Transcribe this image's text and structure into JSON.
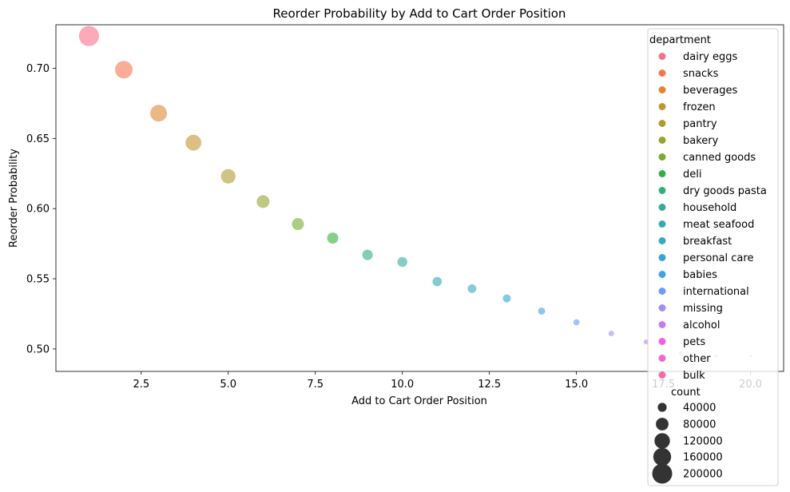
{
  "chart_data": {
    "type": "scatter",
    "title": "Reorder Probability by Add to Cart Order Position",
    "xlabel": "Add to Cart Order Position",
    "ylabel": "Reorder Probability",
    "xlim": [
      0.05,
      20.95
    ],
    "ylim": [
      0.484,
      0.731
    ],
    "xticks": [
      2.5,
      5.0,
      7.5,
      10.0,
      12.5,
      15.0,
      17.5,
      20.0
    ],
    "xtick_labels": [
      "2.5",
      "5.0",
      "7.5",
      "10.0",
      "12.5",
      "15.0",
      "17.5",
      "20.0"
    ],
    "yticks": [
      0.5,
      0.55,
      0.6,
      0.65,
      0.7
    ],
    "ytick_labels": [
      "0.50",
      "0.55",
      "0.60",
      "0.65",
      "0.70"
    ],
    "grid": false,
    "legend_placement": "right",
    "point_alpha": 0.6,
    "points": [
      {
        "x": 1,
        "y": 0.723,
        "count": 215000,
        "department": "dairy eggs"
      },
      {
        "x": 2,
        "y": 0.699,
        "count": 165000,
        "department": "snacks"
      },
      {
        "x": 3,
        "y": 0.668,
        "count": 150000,
        "department": "beverages"
      },
      {
        "x": 4,
        "y": 0.647,
        "count": 135000,
        "department": "frozen"
      },
      {
        "x": 5,
        "y": 0.623,
        "count": 115000,
        "department": "pantry"
      },
      {
        "x": 6,
        "y": 0.605,
        "count": 90000,
        "department": "bakery"
      },
      {
        "x": 7,
        "y": 0.589,
        "count": 80000,
        "department": "canned goods"
      },
      {
        "x": 8,
        "y": 0.579,
        "count": 70000,
        "department": "deli"
      },
      {
        "x": 9,
        "y": 0.567,
        "count": 62000,
        "department": "dry goods pasta"
      },
      {
        "x": 10,
        "y": 0.562,
        "count": 56000,
        "department": "household"
      },
      {
        "x": 11,
        "y": 0.548,
        "count": 50000,
        "department": "meat seafood"
      },
      {
        "x": 12,
        "y": 0.543,
        "count": 44000,
        "department": "breakfast"
      },
      {
        "x": 13,
        "y": 0.536,
        "count": 38000,
        "department": "personal care"
      },
      {
        "x": 14,
        "y": 0.527,
        "count": 30000,
        "department": "babies"
      },
      {
        "x": 15,
        "y": 0.519,
        "count": 24000,
        "department": "international"
      },
      {
        "x": 16,
        "y": 0.511,
        "count": 19000,
        "department": "missing"
      },
      {
        "x": 17,
        "y": 0.505,
        "count": 15000,
        "department": "alcohol"
      },
      {
        "x": 18,
        "y": 0.497,
        "count": 11000,
        "department": "pets"
      },
      {
        "x": 19,
        "y": 0.495,
        "count": 8000,
        "department": "other"
      },
      {
        "x": 20,
        "y": 0.495,
        "count": 5000,
        "department": "bulk"
      }
    ],
    "legend_hue": {
      "title": "department",
      "entries": [
        {
          "label": "dairy eggs",
          "color": "#f77189"
        },
        {
          "label": "snacks",
          "color": "#f7754f"
        },
        {
          "label": "beverages",
          "color": "#dc8932"
        },
        {
          "label": "frozen",
          "color": "#c39532"
        },
        {
          "label": "pantry",
          "color": "#ae9d31"
        },
        {
          "label": "bakery",
          "color": "#97a431"
        },
        {
          "label": "canned goods",
          "color": "#77ab31"
        },
        {
          "label": "deli",
          "color": "#33b03b"
        },
        {
          "label": "dry goods pasta",
          "color": "#34ae7a"
        },
        {
          "label": "household",
          "color": "#35ac99"
        },
        {
          "label": "meat seafood",
          "color": "#36aaad"
        },
        {
          "label": "breakfast",
          "color": "#38a8bb"
        },
        {
          "label": "personal care",
          "color": "#3ba3d0"
        },
        {
          "label": "babies",
          "color": "#41a2e4"
        },
        {
          "label": "international",
          "color": "#6e9bf4"
        },
        {
          "label": "missing",
          "color": "#a38cf4"
        },
        {
          "label": "alcohol",
          "color": "#cc7af4"
        },
        {
          "label": "pets",
          "color": "#f45ee9"
        },
        {
          "label": "other",
          "color": "#f565cc"
        },
        {
          "label": "bulk",
          "color": "#f66bad"
        }
      ]
    },
    "legend_size": {
      "title": "count",
      "entries": [
        {
          "label": "40000",
          "count": 40000
        },
        {
          "label": "80000",
          "count": 80000
        },
        {
          "label": "120000",
          "count": 120000
        },
        {
          "label": "160000",
          "count": 160000
        },
        {
          "label": "200000",
          "count": 200000
        }
      ],
      "color": "#333333"
    }
  }
}
